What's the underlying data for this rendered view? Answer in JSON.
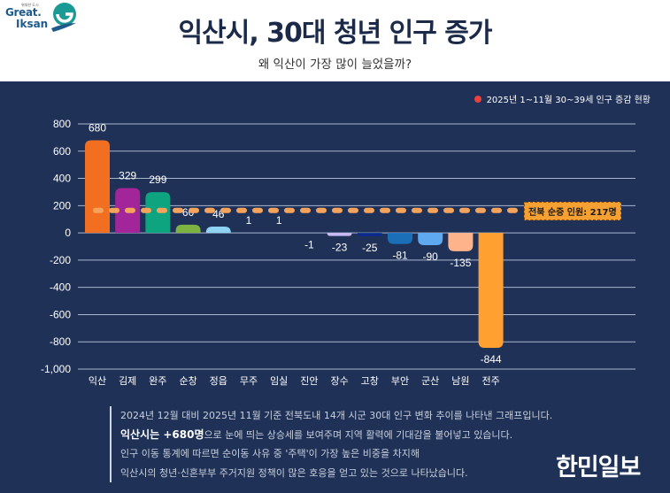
{
  "logo": {
    "top_text": "위대한 도시",
    "line1": "Great.",
    "line2": "Iksan"
  },
  "header": {
    "title": "익산시, 30대 청년 인구 증가",
    "subtitle": "왜 익산이 가장 많이 늘었을까?"
  },
  "legend": {
    "label": "2025년 1~11월 30~39세 인구 증감 현황",
    "color": "#e8423f"
  },
  "average": {
    "label": "전북 순증 인원: 217명",
    "value": 217,
    "color": "#f5a033"
  },
  "chart_data": {
    "type": "bar",
    "title": "익산시, 30대 청년 인구 증가",
    "subtitle": "왜 익산이 가장 많이 늘었을까?",
    "xlabel": "",
    "ylabel": "",
    "ylim": [
      -1000,
      800
    ],
    "yticks": [
      800,
      600,
      400,
      200,
      0,
      -200,
      -400,
      -600,
      -800,
      -1000
    ],
    "ytick_labels": [
      "800",
      "600",
      "400",
      "200",
      "0",
      "-200",
      "-400",
      "-600",
      "-800",
      "-1,000"
    ],
    "grid": true,
    "legend": {
      "entries": [
        "2025년 1~11월 30~39세 인구 증감 현황"
      ],
      "position": "top-right"
    },
    "categories": [
      "익산",
      "김제",
      "완주",
      "순창",
      "정읍",
      "무주",
      "임실",
      "진안",
      "장수",
      "고창",
      "부안",
      "군산",
      "남원",
      "전주"
    ],
    "values": [
      680,
      329,
      299,
      60,
      46,
      1,
      1,
      -1,
      -23,
      -25,
      -81,
      -90,
      -135,
      -844
    ],
    "value_labels": [
      "680",
      "329",
      "299",
      "60",
      "46",
      "1",
      "1",
      "-1",
      "-23",
      "-25",
      "-81",
      "-90",
      "-135",
      "-844"
    ],
    "colors": [
      "#f26f21",
      "#a2259a",
      "#0ea47f",
      "#7cb342",
      "#8fd3f4",
      "#1f3157",
      "#1f3157",
      "#1f3157",
      "#c9b8f2",
      "#0b2a8a",
      "#1a6fb8",
      "#5ea9f0",
      "#ffb38a",
      "#ffa030"
    ],
    "reference_line": {
      "label": "전북 순증 인원: 217명",
      "value": 217,
      "style": "dashed"
    }
  },
  "notes": {
    "line1": "2024년 12월 대비 2025년 11월 기준 전북도내 14개 시군 30대 인구 변화 추이를 나타낸 그래프입니다.",
    "line2_bold": "익산시는 +680명",
    "line2_rest": "으로 눈에 띄는 상승세를 보여주며 지역 활력에 기대감을 불어넣고 있습니다.",
    "line3": "인구 이동 통계에 따르면 순이동 사유 중 '주택'이 가장 높은 비중을 차지해",
    "line4": "익산시의 청년·신혼부부 주거지원 정책이 많은 호응을 얻고 있는 것으로 나타났습니다."
  },
  "brand": "한민일보"
}
